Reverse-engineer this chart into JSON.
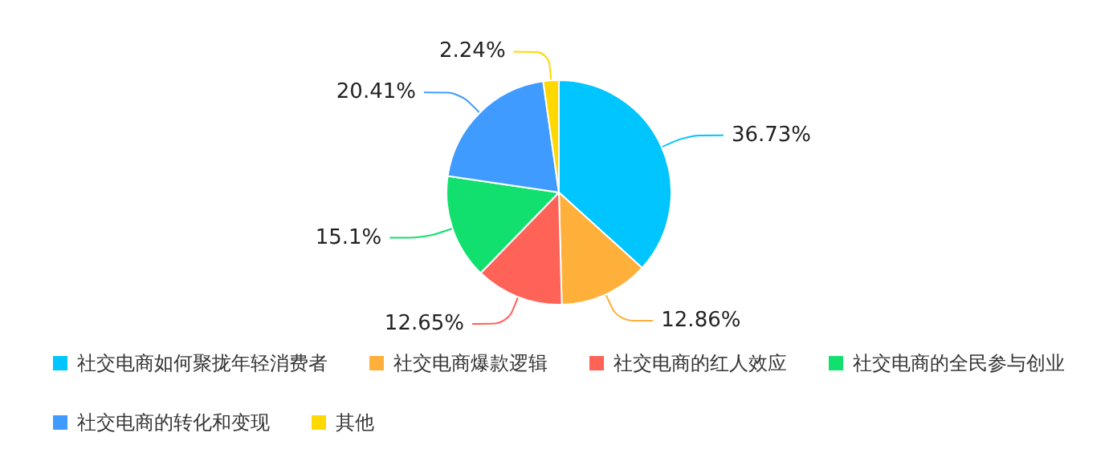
{
  "chart_data": {
    "type": "pie",
    "categories": [
      "社交电商如何聚拢年轻消费者",
      "社交电商爆款逻辑",
      "社交电商的红人效应",
      "社交电商的全民参与创业",
      "社交电商的转化和变现",
      "其他"
    ],
    "values": [
      36.73,
      12.86,
      12.65,
      15.1,
      20.41,
      2.24
    ],
    "colors": [
      "#00c5ff",
      "#ffb03a",
      "#ff6257",
      "#12e06e",
      "#3f9bff",
      "#ffd800"
    ],
    "value_labels": [
      "36.73%",
      "12.86%",
      "12.65%",
      "15.1%",
      "20.41%",
      "2.24%"
    ],
    "legend": "bottom"
  }
}
